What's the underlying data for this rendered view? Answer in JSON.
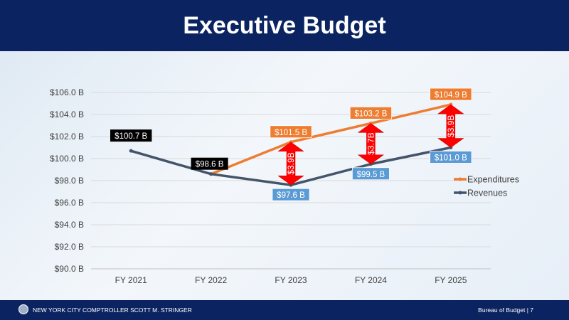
{
  "header": {
    "title": "Executive Budget"
  },
  "footer": {
    "left": "NEW YORK CITY COMPTROLLER SCOTT M. STRINGER",
    "right": "Bureau of Budget | 7"
  },
  "chart_data": {
    "type": "line",
    "categories": [
      "FY 2021",
      "FY 2022",
      "FY 2023",
      "FY 2024",
      "FY 2025"
    ],
    "ylim": [
      90,
      106
    ],
    "yticks": [
      90,
      92,
      94,
      96,
      98,
      100,
      102,
      104,
      106
    ],
    "ytick_labels": [
      "$90.0 B",
      "$92.0 B",
      "$94.0 B",
      "$96.0 B",
      "$98.0 B",
      "$100.0 B",
      "$102.0 B",
      "$104.0 B",
      "$106.0 B"
    ],
    "grid": true,
    "legend_position": "right",
    "series": [
      {
        "name": "Expenditures",
        "color": "#ed7d31",
        "values": [
          null,
          98.6,
          101.5,
          103.2,
          104.9
        ],
        "labels": [
          null,
          null,
          "$101.5 B",
          "$103.2 B",
          "$104.9 B"
        ]
      },
      {
        "name": "Revenues",
        "color": "#44546a",
        "values": [
          100.7,
          98.6,
          97.6,
          99.5,
          101.0
        ],
        "labels": [
          "$100.7 B",
          "$98.6 B",
          "$97.6 B",
          "$99.5 B",
          "$101.0 B"
        ]
      }
    ],
    "gaps": [
      {
        "category": "FY 2023",
        "label": "$3.9B"
      },
      {
        "category": "FY 2024",
        "label": "$3.7B"
      },
      {
        "category": "FY 2025",
        "label": "$3.9B"
      }
    ]
  }
}
